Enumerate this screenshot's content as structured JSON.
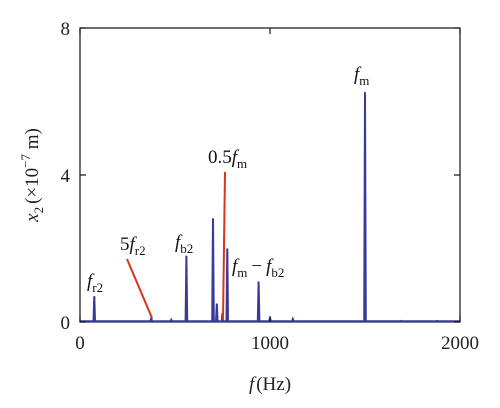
{
  "chart_data": {
    "type": "line",
    "xlabel": {
      "var": "f",
      "unit": "(Hz)"
    },
    "ylabel": {
      "var": "x",
      "sub": "2",
      "unit_open": "(×10",
      "exp": "−7",
      "unit_close": " m)"
    },
    "xlim": [
      0,
      2000
    ],
    "ylim": [
      0,
      8
    ],
    "xticks": [
      "0",
      "1000",
      "2000"
    ],
    "yticks": [
      "0",
      "4",
      "8"
    ],
    "series_color": "#3a3a9a",
    "annotation_color": "#d9341c",
    "series": [
      {
        "peaks": [
          {
            "x": 75,
            "y": 0.7
          },
          {
            "x": 375,
            "y": 0.12
          },
          {
            "x": 480,
            "y": 0.06
          },
          {
            "x": 560,
            "y": 1.8
          },
          {
            "x": 700,
            "y": 2.82
          },
          {
            "x": 720,
            "y": 0.5
          },
          {
            "x": 750,
            "y": 0.25
          },
          {
            "x": 775,
            "y": 2.0
          },
          {
            "x": 940,
            "y": 1.1
          },
          {
            "x": 1000,
            "y": 0.12
          },
          {
            "x": 1120,
            "y": 0.08
          },
          {
            "x": 1500,
            "y": 6.25
          },
          {
            "x": 1690,
            "y": 0.03
          },
          {
            "x": 1880,
            "y": 0.03
          }
        ]
      }
    ],
    "annotations": [
      {
        "base": "f",
        "sub": "r2",
        "minus_base": "",
        "minus_sub": ""
      },
      {
        "prefix": "5",
        "base": "f",
        "sub": "r2"
      },
      {
        "base": "f",
        "sub": "b2"
      },
      {
        "prefix": "0.5",
        "base": "f",
        "sub": "m"
      },
      {
        "base": "f",
        "sub": "m",
        "minus_base": "f",
        "minus_sub": "b2"
      },
      {
        "base": "f",
        "sub": "m"
      }
    ]
  }
}
